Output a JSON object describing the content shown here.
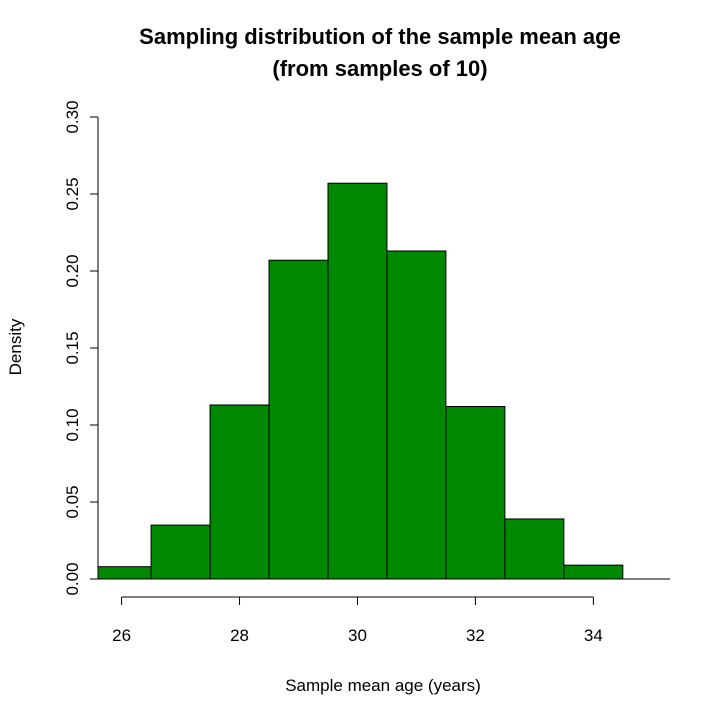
{
  "chart_data": {
    "type": "bar",
    "title": "Sampling distribution of the sample mean age",
    "subtitle": "(from samples of 10)",
    "xlabel": "Sample mean age (years)",
    "ylabel": "Density",
    "bar_color": "#008800",
    "bins": [
      {
        "x0": 25.6,
        "x1": 26.5,
        "density": 0.008
      },
      {
        "x0": 26.5,
        "x1": 27.5,
        "density": 0.035
      },
      {
        "x0": 27.5,
        "x1": 28.5,
        "density": 0.113
      },
      {
        "x0": 28.5,
        "x1": 29.5,
        "density": 0.207
      },
      {
        "x0": 29.5,
        "x1": 30.5,
        "density": 0.257
      },
      {
        "x0": 30.5,
        "x1": 31.5,
        "density": 0.213
      },
      {
        "x0": 31.5,
        "x1": 32.5,
        "density": 0.112
      },
      {
        "x0": 32.5,
        "x1": 33.5,
        "density": 0.039
      },
      {
        "x0": 33.5,
        "x1": 34.5,
        "density": 0.009
      }
    ],
    "xlim": [
      25.6,
      35.3
    ],
    "ylim": [
      0,
      0.3
    ],
    "x_ticks": [
      26,
      28,
      30,
      32,
      34
    ],
    "x_tick_labels": [
      "26",
      "28",
      "30",
      "32",
      "34"
    ],
    "y_ticks": [
      0,
      0.05,
      0.1,
      0.15,
      0.2,
      0.25,
      0.3
    ],
    "y_tick_labels": [
      "0.00",
      "0.05",
      "0.10",
      "0.15",
      "0.20",
      "0.25",
      "0.30"
    ],
    "grid": false
  }
}
